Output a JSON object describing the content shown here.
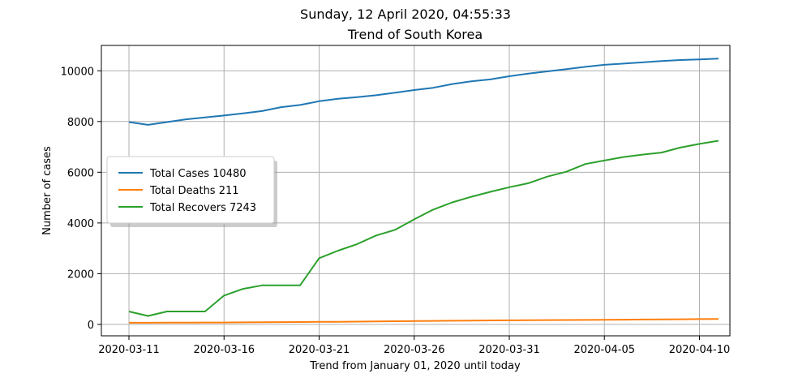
{
  "chart_data": {
    "type": "line",
    "suptitle": "Sunday, 12 April 2020, 04:55:33",
    "title": "Trend of South Korea",
    "xlabel": "Trend from January 01, 2020 until today",
    "ylabel": "Number of cases",
    "x": [
      "2020-03-11",
      "2020-03-12",
      "2020-03-13",
      "2020-03-14",
      "2020-03-15",
      "2020-03-16",
      "2020-03-17",
      "2020-03-18",
      "2020-03-19",
      "2020-03-20",
      "2020-03-21",
      "2020-03-22",
      "2020-03-23",
      "2020-03-24",
      "2020-03-25",
      "2020-03-26",
      "2020-03-27",
      "2020-03-28",
      "2020-03-29",
      "2020-03-30",
      "2020-03-31",
      "2020-04-01",
      "2020-04-02",
      "2020-04-03",
      "2020-04-04",
      "2020-04-05",
      "2020-04-06",
      "2020-04-07",
      "2020-04-08",
      "2020-04-09",
      "2020-04-10",
      "2020-04-11"
    ],
    "x_ticks": [
      "2020-03-11",
      "2020-03-16",
      "2020-03-21",
      "2020-03-26",
      "2020-03-31",
      "2020-04-05",
      "2020-04-10"
    ],
    "xlim": [
      "2020-03-10",
      "2020-04-12"
    ],
    "ylim": [
      -450,
      11000
    ],
    "y_ticks": [
      0,
      2000,
      4000,
      6000,
      8000,
      10000
    ],
    "y_tick_labels": [
      "0",
      "2000",
      "4000",
      "6000",
      "8000",
      "10000"
    ],
    "grid": true,
    "legend_position": "center-left",
    "series": [
      {
        "name": "Total Cases 10480",
        "color": "#1f77b4",
        "values": [
          7979,
          7869,
          7979,
          8086,
          8162,
          8236,
          8320,
          8413,
          8565,
          8652,
          8799,
          8897,
          8961,
          9037,
          9137,
          9241,
          9332,
          9478,
          9583,
          9661,
          9786,
          9887,
          9976,
          10062,
          10156,
          10237,
          10284,
          10331,
          10384,
          10423,
          10450,
          10480
        ]
      },
      {
        "name": "Total Deaths 211",
        "color": "#ff7f0e",
        "values": [
          66,
          66,
          67,
          72,
          75,
          75,
          81,
          84,
          91,
          94,
          102,
          104,
          111,
          120,
          126,
          131,
          139,
          144,
          152,
          158,
          162,
          165,
          169,
          174,
          177,
          183,
          186,
          192,
          200,
          204,
          208,
          211
        ]
      },
      {
        "name": "Total Recovers 7243",
        "color": "#2ca02c",
        "values": [
          510,
          333,
          510,
          510,
          510,
          1137,
          1401,
          1540,
          1540,
          1540,
          2612,
          2909,
          3166,
          3507,
          3730,
          4144,
          4528,
          4811,
          5033,
          5228,
          5408,
          5567,
          5828,
          6021,
          6325,
          6463,
          6598,
          6694,
          6776,
          6973,
          7117,
          7243
        ]
      }
    ]
  }
}
